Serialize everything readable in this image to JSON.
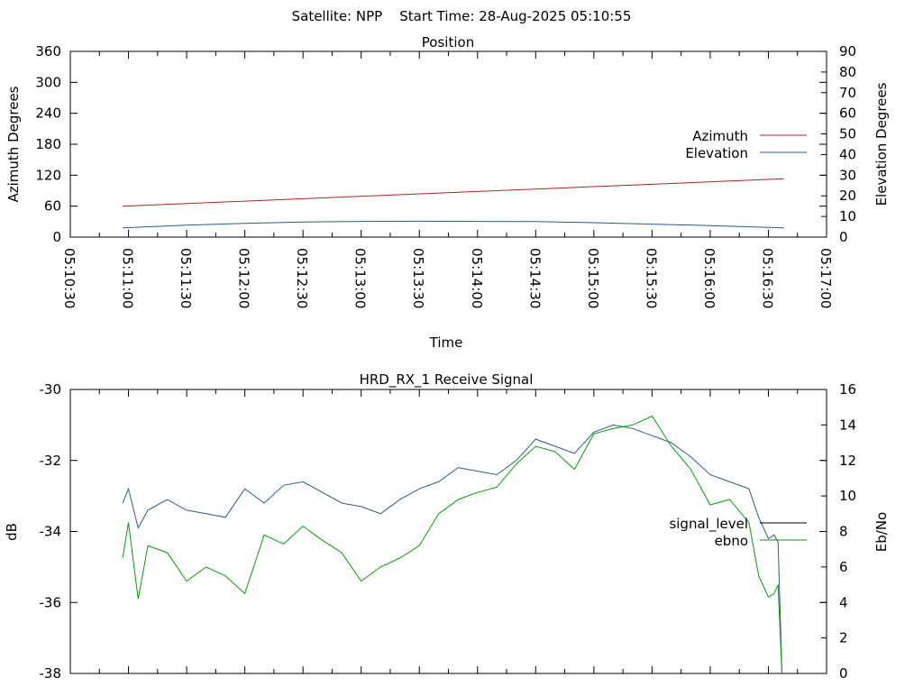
{
  "page_title": "Satellite: NPP    Start Time: 28-Aug-2025 05:10:55",
  "chart_data": [
    {
      "type": "line",
      "title": "Position",
      "xlabel": "Time",
      "ylabel": "Azimuth Degrees",
      "y2label": "Elevation Degrees",
      "xlim": [
        "05:10:30",
        "05:17:00"
      ],
      "ylim": [
        0,
        360
      ],
      "y2lim": [
        0,
        90
      ],
      "x_ticks": [
        "05:10:30",
        "05:11:00",
        "05:11:30",
        "05:12:00",
        "05:12:30",
        "05:13:00",
        "05:13:30",
        "05:14:00",
        "05:14:30",
        "05:15:00",
        "05:15:30",
        "05:16:00",
        "05:16:30",
        "05:17:00"
      ],
      "y_ticks": [
        "0",
        "60",
        "120",
        "180",
        "240",
        "300",
        "360"
      ],
      "y2_ticks": [
        "0",
        "10",
        "20",
        "30",
        "40",
        "50",
        "60",
        "70",
        "80",
        "90"
      ],
      "grid": false,
      "legend_position": "right",
      "series": [
        {
          "name": "Azimuth",
          "axis": "y",
          "color": "#b22222",
          "x": [
            "05:10:57",
            "05:16:38"
          ],
          "values": [
            60,
            113
          ]
        },
        {
          "name": "Elevation",
          "axis": "y2",
          "color": "#2a5c8c",
          "x": [
            "05:10:57",
            "05:11:30",
            "05:12:00",
            "05:12:30",
            "05:13:00",
            "05:13:30",
            "05:14:00",
            "05:14:30",
            "05:15:00",
            "05:15:30",
            "05:16:00",
            "05:16:38"
          ],
          "values": [
            4.5,
            5.8,
            6.7,
            7.3,
            7.6,
            7.7,
            7.6,
            7.5,
            7.0,
            6.3,
            5.6,
            4.5
          ]
        }
      ]
    },
    {
      "type": "line",
      "title": "HRD_RX_1 Receive Signal",
      "ylabel": "dB",
      "y2label": "Eb/No",
      "xlim": [
        "05:10:30",
        "05:17:00"
      ],
      "ylim": [
        -38,
        -30
      ],
      "y2lim": [
        0,
        16
      ],
      "y_ticks": [
        "-30",
        "-32",
        "-34",
        "-36",
        "-38"
      ],
      "y2_ticks": [
        "0",
        "2",
        "4",
        "6",
        "8",
        "10",
        "12",
        "14",
        "16"
      ],
      "grid": false,
      "legend_position": "right",
      "series": [
        {
          "name": "signal_level",
          "axis": "y",
          "color": "#2a5c8c",
          "x": [
            "05:10:57",
            "05:11:00",
            "05:11:05",
            "05:11:10",
            "05:11:20",
            "05:11:30",
            "05:11:40",
            "05:11:50",
            "05:12:00",
            "05:12:10",
            "05:12:20",
            "05:12:30",
            "05:12:40",
            "05:12:50",
            "05:13:00",
            "05:13:10",
            "05:13:20",
            "05:13:30",
            "05:13:40",
            "05:13:50",
            "05:14:00",
            "05:14:10",
            "05:14:20",
            "05:14:30",
            "05:14:40",
            "05:14:50",
            "05:15:00",
            "05:15:10",
            "05:15:20",
            "05:15:30",
            "05:15:40",
            "05:15:50",
            "05:16:00",
            "05:16:10",
            "05:16:20",
            "05:16:25",
            "05:16:30",
            "05:16:33",
            "05:16:35",
            "05:16:37"
          ],
          "values": [
            -33.2,
            -32.8,
            -33.9,
            -33.4,
            -33.1,
            -33.4,
            -33.5,
            -33.6,
            -32.8,
            -33.2,
            -32.7,
            -32.6,
            -32.9,
            -33.2,
            -33.3,
            -33.5,
            -33.1,
            -32.8,
            -32.6,
            -32.2,
            -32.3,
            -32.4,
            -32.0,
            -31.4,
            -31.6,
            -31.8,
            -31.2,
            -31.0,
            -31.1,
            -31.3,
            -31.5,
            -31.9,
            -32.4,
            -32.6,
            -32.8,
            -33.6,
            -34.2,
            -34.1,
            -34.3,
            -38.0
          ]
        },
        {
          "name": "ebno",
          "axis": "y2",
          "color": "#00a000",
          "x": [
            "05:10:57",
            "05:11:00",
            "05:11:05",
            "05:11:10",
            "05:11:20",
            "05:11:30",
            "05:11:40",
            "05:11:50",
            "05:12:00",
            "05:12:10",
            "05:12:20",
            "05:12:30",
            "05:12:40",
            "05:12:50",
            "05:13:00",
            "05:13:10",
            "05:13:20",
            "05:13:30",
            "05:13:40",
            "05:13:50",
            "05:14:00",
            "05:14:10",
            "05:14:20",
            "05:14:30",
            "05:14:40",
            "05:14:50",
            "05:15:00",
            "05:15:10",
            "05:15:20",
            "05:15:30",
            "05:15:40",
            "05:15:50",
            "05:16:00",
            "05:16:10",
            "05:16:20",
            "05:16:25",
            "05:16:30",
            "05:16:33",
            "05:16:35",
            "05:16:37"
          ],
          "values": [
            6.5,
            8.5,
            4.2,
            7.2,
            6.8,
            5.2,
            6.0,
            5.5,
            4.5,
            7.8,
            7.3,
            8.3,
            7.5,
            6.8,
            5.2,
            6.0,
            6.5,
            7.2,
            9.0,
            9.8,
            10.2,
            10.5,
            11.8,
            12.8,
            12.5,
            11.5,
            13.5,
            13.8,
            14.0,
            14.5,
            12.8,
            11.5,
            9.5,
            9.8,
            8.5,
            5.5,
            4.3,
            4.5,
            5.0,
            0.0
          ]
        }
      ]
    }
  ]
}
